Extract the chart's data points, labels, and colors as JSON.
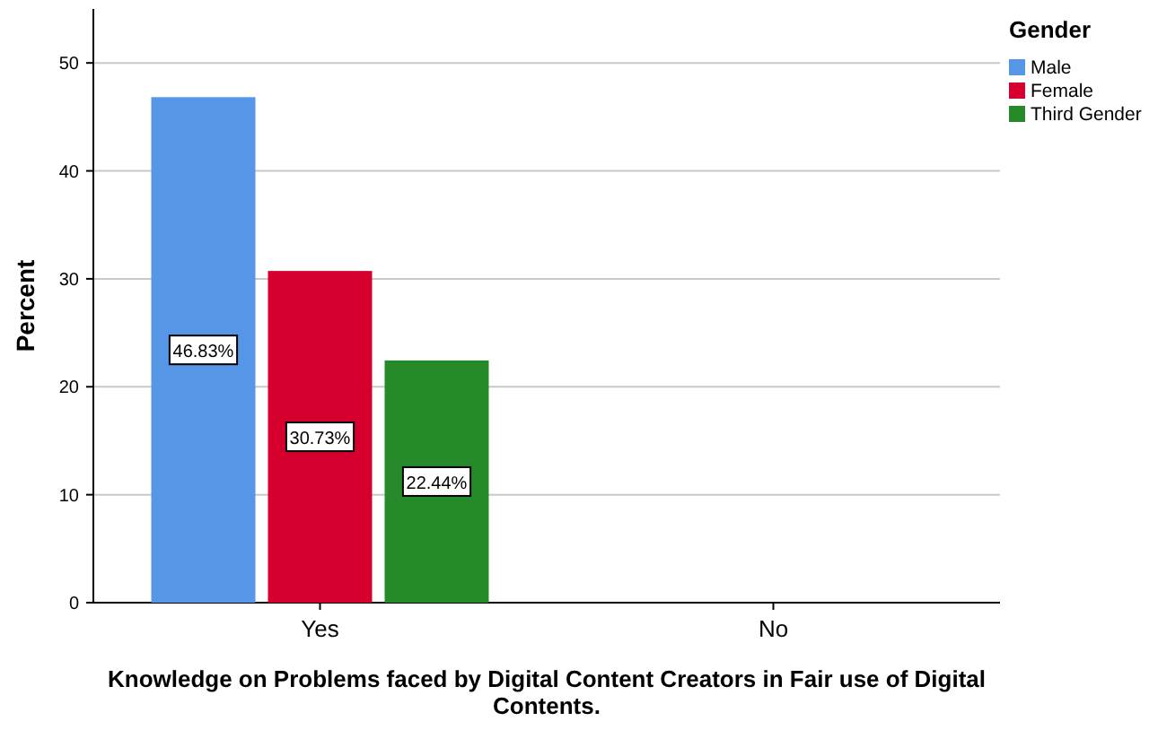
{
  "chart_data": {
    "type": "bar",
    "xlabel": "Knowledge on Problems faced by Digital Content Creators in Fair use of Digital Contents.",
    "ylabel": "Percent",
    "legend_title": "Gender",
    "categories": [
      "Yes",
      "No"
    ],
    "series": [
      {
        "name": "Male",
        "color": "#5596e6",
        "values": [
          46.83,
          null
        ],
        "value_labels": [
          "46.83%",
          null
        ]
      },
      {
        "name": "Female",
        "color": "#d6002f",
        "values": [
          30.73,
          null
        ],
        "value_labels": [
          "30.73%",
          null
        ]
      },
      {
        "name": "Third Gender",
        "color": "#278a2a",
        "values": [
          22.44,
          null
        ],
        "value_labels": [
          "22.44%",
          null
        ]
      }
    ],
    "ylim": [
      0,
      55
    ],
    "yticks": [
      0,
      10,
      20,
      30,
      40,
      50
    ],
    "grid": "y",
    "legend": "top right"
  }
}
